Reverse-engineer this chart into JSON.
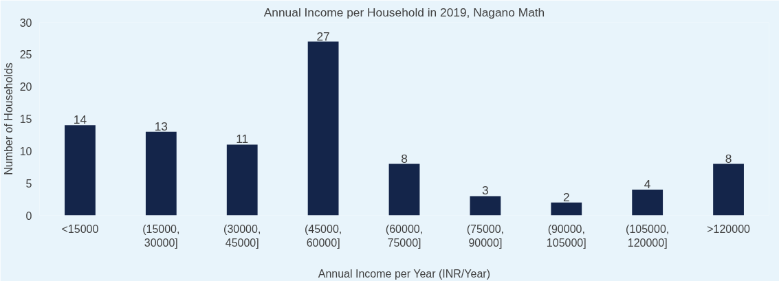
{
  "chart_data": {
    "type": "bar",
    "title": "Annual Income per Household in 2019, Nagano Math",
    "xlabel": "Annual Income per Year (INR/Year)",
    "ylabel": "Number of Households",
    "categories": [
      "<15000",
      "(15000, 30000]",
      "(30000, 45000]",
      "(45000, 60000]",
      "(60000, 75000]",
      "(75000, 90000]",
      "(90000, 105000]",
      "(105000, 120000]",
      ">120000"
    ],
    "values": [
      14,
      13,
      11,
      27,
      8,
      3,
      2,
      4,
      8
    ],
    "color": "#14254a",
    "ylim": [
      0,
      30
    ],
    "yticks": [
      0,
      5,
      10,
      15,
      20,
      25,
      30
    ],
    "grid": false,
    "data_labels": true
  }
}
